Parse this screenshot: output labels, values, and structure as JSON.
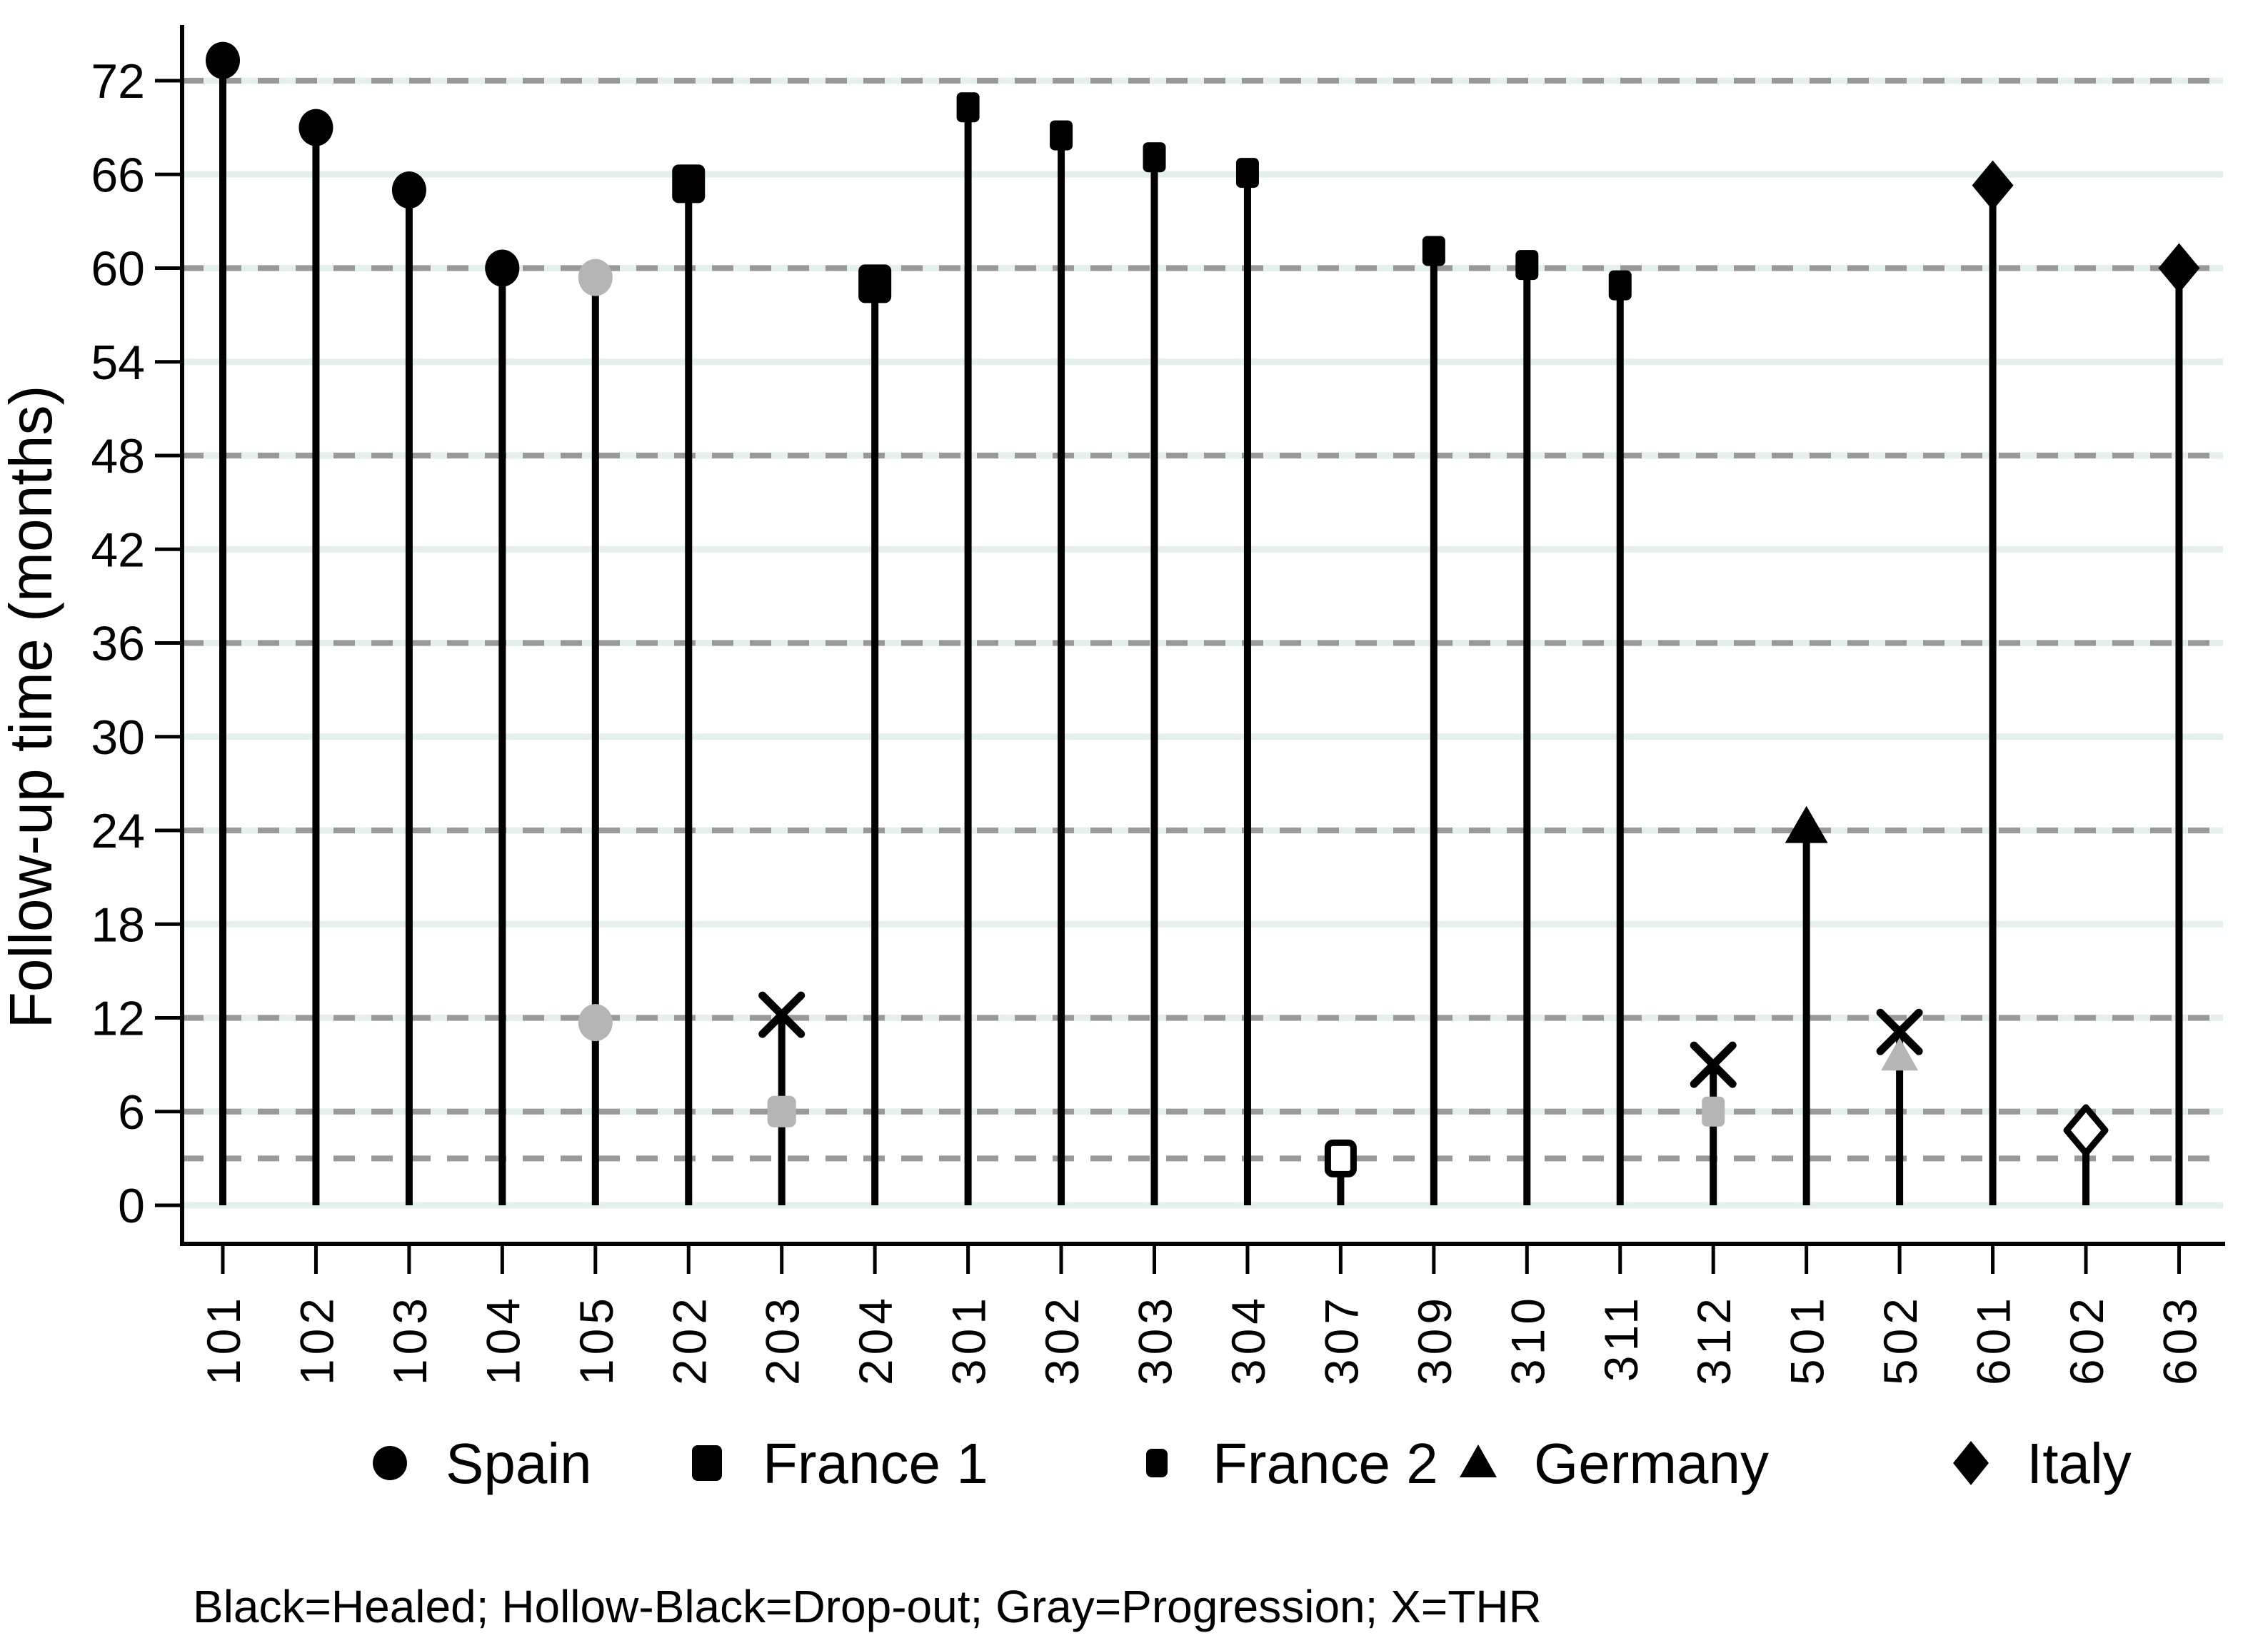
{
  "chart": {
    "y_axis": {
      "title": "Follow-up time (months)",
      "ticks": [
        0,
        6,
        12,
        18,
        24,
        30,
        36,
        42,
        48,
        54,
        60,
        66,
        72
      ],
      "range": [
        0,
        75
      ],
      "solid_gridlines_at": [
        0,
        6,
        12,
        18,
        24,
        30,
        36,
        42,
        48,
        54,
        60,
        66,
        72
      ],
      "dashed_reference_lines_at": [
        3,
        6,
        12,
        24,
        36,
        48,
        60,
        72
      ]
    },
    "x_axis": {
      "labels": [
        "101",
        "102",
        "103",
        "104",
        "105",
        "202",
        "203",
        "204",
        "301",
        "302",
        "303",
        "304",
        "307",
        "309",
        "310",
        "311",
        "312",
        "501",
        "502",
        "601",
        "602",
        "603"
      ]
    },
    "legend": {
      "items": [
        {
          "label": "Spain",
          "marker": "circle"
        },
        {
          "label": "France 1",
          "marker": "square-lg"
        },
        {
          "label": "France 2",
          "marker": "square-sm"
        },
        {
          "label": "Germany",
          "marker": "triangle"
        },
        {
          "label": "Italy",
          "marker": "diamond"
        }
      ]
    },
    "footnote": "Black=Healed; Hollow-Black=Drop-out; Gray=Progression; X=THR",
    "colors": {
      "marker_black": "#000000",
      "marker_gray": "#b5b5b5",
      "hollow_fill": "#ffffff",
      "grid_solid": "#e4f0ed",
      "grid_dashed": "#999999",
      "axis": "#000000"
    }
  },
  "chart_data": {
    "type": "bar",
    "subtype": "spike-lollipop",
    "ylabel": "Follow-up time (months)",
    "ylim": [
      0,
      75
    ],
    "categories": [
      "101",
      "102",
      "103",
      "104",
      "105",
      "202",
      "203",
      "204",
      "301",
      "302",
      "303",
      "304",
      "307",
      "309",
      "310",
      "311",
      "312",
      "501",
      "502",
      "601",
      "602",
      "603"
    ],
    "series_marker_map": {
      "Spain": "circle",
      "France 1": "square-lg",
      "France 2": "square-sm",
      "Germany": "triangle",
      "Italy": "diamond"
    },
    "status_legend": {
      "black": "Healed",
      "hollow": "Drop-out",
      "gray": "Progression",
      "x": "THR"
    },
    "patients": [
      {
        "id": "101",
        "series": "Spain",
        "markers": [
          {
            "months": 73.3,
            "fill": "black",
            "meaning": "Healed"
          }
        ]
      },
      {
        "id": "102",
        "series": "Spain",
        "markers": [
          {
            "months": 69,
            "fill": "black",
            "meaning": "Healed"
          }
        ]
      },
      {
        "id": "103",
        "series": "Spain",
        "markers": [
          {
            "months": 65,
            "fill": "black",
            "meaning": "Healed"
          }
        ]
      },
      {
        "id": "104",
        "series": "Spain",
        "markers": [
          {
            "months": 60,
            "fill": "black",
            "meaning": "Healed"
          }
        ]
      },
      {
        "id": "105",
        "series": "Spain",
        "markers": [
          {
            "months": 59.4,
            "fill": "gray",
            "meaning": "Progression"
          },
          {
            "months": 11.7,
            "fill": "gray",
            "meaning": "Progression"
          }
        ]
      },
      {
        "id": "202",
        "series": "France 1",
        "markers": [
          {
            "months": 65.4,
            "fill": "black",
            "meaning": "Healed"
          }
        ]
      },
      {
        "id": "203",
        "series": "France 1",
        "markers": [
          {
            "months": 12.2,
            "shape": "x",
            "fill": "black",
            "meaning": "THR"
          },
          {
            "months": 6,
            "fill": "gray",
            "meaning": "Progression"
          }
        ]
      },
      {
        "id": "204",
        "series": "France 1",
        "markers": [
          {
            "months": 59,
            "fill": "black",
            "meaning": "Healed"
          }
        ]
      },
      {
        "id": "301",
        "series": "France 2",
        "markers": [
          {
            "months": 70.3,
            "fill": "black",
            "meaning": "Healed"
          }
        ]
      },
      {
        "id": "302",
        "series": "France 2",
        "markers": [
          {
            "months": 68.5,
            "fill": "black",
            "meaning": "Healed"
          }
        ]
      },
      {
        "id": "303",
        "series": "France 2",
        "markers": [
          {
            "months": 67.1,
            "fill": "black",
            "meaning": "Healed"
          }
        ]
      },
      {
        "id": "304",
        "series": "France 2",
        "markers": [
          {
            "months": 66.1,
            "fill": "black",
            "meaning": "Healed"
          }
        ]
      },
      {
        "id": "307",
        "series": "France 2",
        "markers": [
          {
            "months": 3,
            "fill": "hollow",
            "meaning": "Drop-out"
          }
        ]
      },
      {
        "id": "309",
        "series": "France 2",
        "markers": [
          {
            "months": 61.1,
            "fill": "black",
            "meaning": "Healed"
          }
        ]
      },
      {
        "id": "310",
        "series": "France 2",
        "markers": [
          {
            "months": 60.2,
            "fill": "black",
            "meaning": "Healed"
          }
        ]
      },
      {
        "id": "311",
        "series": "France 2",
        "markers": [
          {
            "months": 58.9,
            "fill": "black",
            "meaning": "Healed"
          }
        ]
      },
      {
        "id": "312",
        "series": "France 2",
        "markers": [
          {
            "months": 9,
            "shape": "x",
            "fill": "black",
            "meaning": "THR"
          },
          {
            "months": 6,
            "fill": "gray",
            "meaning": "Progression"
          }
        ]
      },
      {
        "id": "501",
        "series": "Germany",
        "markers": [
          {
            "months": 24.2,
            "fill": "black",
            "meaning": "Healed"
          }
        ]
      },
      {
        "id": "502",
        "series": "Germany",
        "markers": [
          {
            "months": 11.1,
            "shape": "x",
            "fill": "black",
            "meaning": "THR"
          },
          {
            "months": 9.5,
            "fill": "gray",
            "meaning": "Progression"
          }
        ]
      },
      {
        "id": "601",
        "series": "Italy",
        "markers": [
          {
            "months": 65.3,
            "fill": "black",
            "meaning": "Healed"
          }
        ]
      },
      {
        "id": "602",
        "series": "Italy",
        "markers": [
          {
            "months": 4.8,
            "fill": "hollow",
            "meaning": "Drop-out"
          }
        ]
      },
      {
        "id": "603",
        "series": "Italy",
        "markers": [
          {
            "months": 60,
            "fill": "black",
            "meaning": "Healed"
          }
        ]
      }
    ]
  }
}
